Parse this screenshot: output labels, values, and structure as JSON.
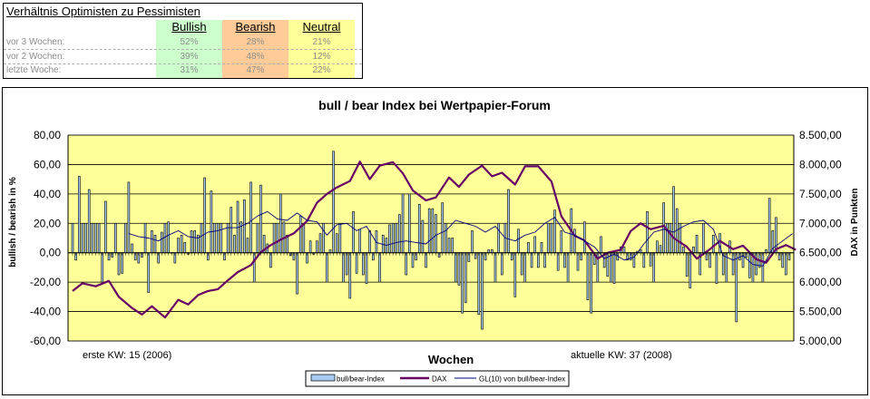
{
  "table": {
    "title": "Verhältnis Optimisten zu Pessimisten",
    "headers": [
      "Bullish",
      "Bearish",
      "Neutral"
    ],
    "header_colors": [
      "#ccffcc",
      "#ffcc99",
      "#ffff99"
    ],
    "rows": [
      {
        "label": "vor 3 Wochen:",
        "values": [
          "52%",
          "28%",
          "21%"
        ]
      },
      {
        "label": "vor 2 Wochen:",
        "values": [
          "39%",
          "48%",
          "12%"
        ]
      },
      {
        "label": "letzte Woche:",
        "values": [
          "31%",
          "47%",
          "22%"
        ]
      }
    ]
  },
  "chart_data": {
    "type": "bar",
    "title": "bull / bear Index bei Wertpapier-Forum",
    "xlabel": "Wochen",
    "ylabel": "bullish / bearish in %",
    "y2label": "DAX in Punkten",
    "ylim": [
      -60,
      80
    ],
    "y2lim": [
      5000,
      8500
    ],
    "yticks": [
      "-60,00",
      "-40,00",
      "-20,00",
      "0,00",
      "20,00",
      "40,00",
      "60,00",
      "80,00"
    ],
    "y2ticks": [
      "5.000,00",
      "5.500,00",
      "6.000,00",
      "6.500,00",
      "7.000,00",
      "7.500,00",
      "8.000,00",
      "8.500,00"
    ],
    "annotations": [
      "erste KW: 15 (2006)",
      "aktuelle KW: 37 (2008)"
    ],
    "plot_bg": "#ffff99",
    "legend_position": "bottom",
    "colors": {
      "bars": "#a6caf0",
      "bar_border": "#000000",
      "dax": "#660066",
      "gl10": "#000080"
    },
    "series": [
      {
        "name": "bull/bear-Index",
        "type": "bar",
        "values": [
          20,
          -5,
          52,
          20,
          20,
          43,
          20,
          20,
          20,
          -20,
          35,
          -5,
          -3,
          20,
          -15,
          -14,
          20,
          48,
          6,
          -5,
          -7,
          -3,
          20,
          -27,
          15,
          12,
          -7,
          14,
          20,
          21,
          0,
          -7,
          10,
          12,
          7,
          -1,
          15,
          15,
          12,
          20,
          51,
          -5,
          42,
          20,
          20,
          20,
          -5,
          20,
          31,
          12,
          35,
          21,
          36,
          10,
          48,
          -20,
          20,
          46,
          12,
          6,
          -10,
          20,
          20,
          40,
          21,
          12,
          -2,
          -5,
          -28,
          25,
          20,
          -7,
          8,
          -1,
          8,
          13,
          20,
          -20,
          2,
          69,
          13,
          20,
          -20,
          -15,
          -31,
          28,
          -14,
          16,
          -15,
          -21,
          15,
          -5,
          15,
          -20,
          12,
          10,
          19,
          20,
          20,
          26,
          40,
          -15,
          40,
          -10,
          -5,
          33,
          22,
          -10,
          30,
          30,
          26,
          -3,
          34,
          20,
          10,
          10,
          -20,
          -22,
          -41,
          -34,
          -6,
          15,
          -4,
          -42,
          -52,
          -5,
          2,
          2,
          -20,
          20,
          -15,
          20,
          43,
          -5,
          -30,
          16,
          -15,
          -20,
          7,
          -10,
          11,
          -10,
          7,
          -10,
          20,
          20,
          29,
          -12,
          15,
          -10,
          -20,
          30,
          16,
          -12,
          -5,
          21,
          -32,
          -41,
          -8,
          -20,
          11,
          -10,
          -16,
          -20,
          -21,
          -5,
          4,
          4,
          -5,
          -5,
          -10,
          1,
          2,
          -10,
          28,
          -9,
          -20,
          8,
          5,
          34,
          20,
          20,
          45,
          30,
          20,
          4,
          -16,
          -24,
          4,
          12,
          -15,
          20,
          -5,
          -10,
          12,
          -21,
          13,
          -15,
          -20,
          8,
          -15,
          -47,
          -5,
          -10,
          -3,
          -17,
          -20,
          -15,
          -10,
          -20,
          2,
          37,
          15,
          24,
          -5,
          -10,
          -15,
          -5
        ]
      },
      {
        "name": "DAX",
        "type": "line",
        "axis": "right",
        "x": [
          0,
          3,
          7,
          11,
          14,
          18,
          21,
          24,
          28,
          32,
          35,
          38,
          41,
          44,
          47,
          50,
          54,
          57,
          60,
          63,
          67,
          71,
          74,
          77,
          80,
          84,
          87,
          90,
          93,
          97,
          100,
          103,
          107,
          110,
          114,
          117,
          120,
          124,
          127,
          130,
          134,
          137,
          141,
          145,
          148,
          152,
          155,
          159,
          162,
          166,
          169,
          172,
          175,
          179,
          182,
          186,
          189,
          193,
          196,
          200,
          203,
          207,
          210,
          213,
          216,
          219
        ],
        "values": [
          5850,
          5980,
          5930,
          6020,
          5750,
          5560,
          5450,
          5590,
          5400,
          5700,
          5620,
          5780,
          5850,
          5880,
          6030,
          6170,
          6290,
          6510,
          6630,
          6720,
          6830,
          7040,
          7350,
          7500,
          7610,
          7720,
          8050,
          7750,
          7980,
          8040,
          7850,
          7560,
          7390,
          7440,
          7780,
          7620,
          7830,
          7980,
          7800,
          7860,
          7660,
          7970,
          7970,
          7710,
          7120,
          6790,
          6710,
          6400,
          6500,
          6550,
          6870,
          7000,
          6900,
          6960,
          6750,
          6600,
          6400,
          6560,
          6700,
          6560,
          6620,
          6390,
          6330,
          6560,
          6630,
          6550
        ]
      },
      {
        "name": "GL(10) von bull/bear-Index",
        "type": "line",
        "x": [
          17,
          20,
          23,
          26,
          29,
          32,
          35,
          38,
          41,
          44,
          47,
          50,
          53,
          56,
          59,
          62,
          65,
          68,
          71,
          74,
          77,
          80,
          83,
          86,
          89,
          92,
          95,
          98,
          101,
          104,
          107,
          110,
          113,
          116,
          119,
          122,
          125,
          128,
          131,
          134,
          137,
          140,
          143,
          146,
          149,
          152,
          155,
          158,
          161,
          164,
          167,
          170,
          173,
          176,
          179,
          182,
          185,
          188,
          191,
          194,
          197,
          200,
          203,
          206,
          209,
          212,
          215,
          218
        ],
        "values": [
          13,
          11,
          10,
          8,
          12,
          15,
          11,
          10,
          14,
          15,
          17,
          17,
          20,
          25,
          28,
          23,
          22,
          27,
          22,
          21,
          12,
          19,
          20,
          15,
          18,
          7,
          5,
          7,
          8,
          7,
          6,
          12,
          15,
          22,
          20,
          18,
          14,
          18,
          10,
          8,
          12,
          14,
          20,
          24,
          14,
          12,
          8,
          4,
          -4,
          -1,
          -5,
          -3,
          6,
          14,
          16,
          14,
          18,
          21,
          22,
          16,
          -2,
          -5,
          -2,
          -8,
          -9,
          3,
          8,
          13
        ]
      }
    ]
  }
}
